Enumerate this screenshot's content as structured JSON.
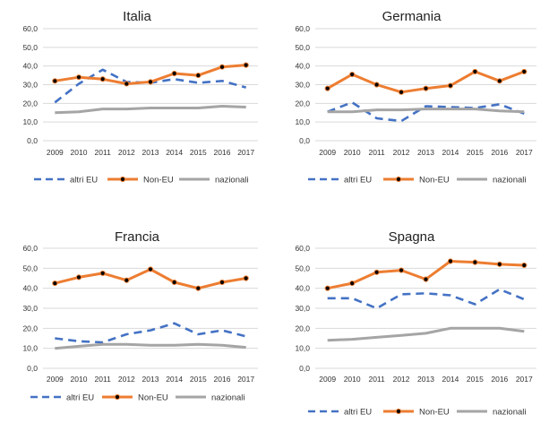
{
  "chart_data": [
    {
      "type": "line",
      "title": "Italia",
      "x": [
        "2009",
        "2010",
        "2011",
        "2012",
        "2013",
        "2014",
        "2015",
        "2016",
        "2017"
      ],
      "y_ticks": [
        "0,0",
        "10,0",
        "20,0",
        "30,0",
        "40,0",
        "50,0",
        "60,0"
      ],
      "ylim": [
        0,
        60
      ],
      "grid": true,
      "legend_position": "bottom",
      "series": [
        {
          "name": "altri EU",
          "values": [
            20.5,
            30.5,
            38.0,
            31.5,
            31.0,
            33.0,
            31.0,
            32.0,
            28.5
          ],
          "color": "#4472c4",
          "style": "dashed"
        },
        {
          "name": "Non-EU",
          "values": [
            32.0,
            34.0,
            33.0,
            30.5,
            31.5,
            36.0,
            35.0,
            39.5,
            40.5
          ],
          "color": "#ed7d31",
          "style": "solid-markers"
        },
        {
          "name": "nazionali",
          "values": [
            15.0,
            15.5,
            17.0,
            17.0,
            17.5,
            17.5,
            17.5,
            18.5,
            18.0
          ],
          "color": "#a5a5a5",
          "style": "solid"
        }
      ]
    },
    {
      "type": "line",
      "title": "Germania",
      "x": [
        "2009",
        "2010",
        "2011",
        "2012",
        "2013",
        "2014",
        "2015",
        "2016",
        "2017"
      ],
      "y_ticks": [
        "0,0",
        "10,0",
        "20,0",
        "30,0",
        "40,0",
        "50,0",
        "60,0"
      ],
      "ylim": [
        0,
        60
      ],
      "grid": true,
      "legend_position": "bottom",
      "series": [
        {
          "name": "altri EU",
          "values": [
            15.5,
            20.5,
            12.0,
            10.5,
            18.5,
            18.0,
            17.5,
            19.5,
            14.5
          ],
          "color": "#4472c4",
          "style": "dashed"
        },
        {
          "name": "Non-EU",
          "values": [
            28.0,
            35.5,
            30.0,
            26.0,
            28.0,
            29.5,
            37.0,
            32.0,
            37.0
          ],
          "color": "#ed7d31",
          "style": "solid-markers"
        },
        {
          "name": "nazionali",
          "values": [
            15.5,
            15.5,
            16.5,
            16.5,
            17.0,
            17.0,
            17.0,
            16.0,
            15.5
          ],
          "color": "#a5a5a5",
          "style": "solid"
        }
      ]
    },
    {
      "type": "line",
      "title": "Francia",
      "x": [
        "2009",
        "2010",
        "2011",
        "2012",
        "2013",
        "2014",
        "2015",
        "2016",
        "2017"
      ],
      "y_ticks": [
        "0,0",
        "10,0",
        "20,0",
        "30,0",
        "40,0",
        "50,0",
        "60,0"
      ],
      "ylim": [
        0,
        60
      ],
      "grid": true,
      "legend_position": "bottom",
      "series": [
        {
          "name": "altri EU",
          "values": [
            15.0,
            13.5,
            13.0,
            17.0,
            19.0,
            22.5,
            17.0,
            19.0,
            16.0
          ],
          "color": "#4472c4",
          "style": "dashed"
        },
        {
          "name": "Non-EU",
          "values": [
            42.5,
            45.5,
            47.5,
            44.0,
            49.5,
            43.0,
            40.0,
            43.0,
            45.0
          ],
          "color": "#ed7d31",
          "style": "solid-markers"
        },
        {
          "name": "nazionali",
          "values": [
            10.0,
            11.0,
            12.0,
            12.0,
            11.5,
            11.5,
            12.0,
            11.5,
            10.5
          ],
          "color": "#a5a5a5",
          "style": "solid"
        }
      ]
    },
    {
      "type": "line",
      "title": "Spagna",
      "x": [
        "2009",
        "2010",
        "2011",
        "2012",
        "2013",
        "2014",
        "2015",
        "2016",
        "2017"
      ],
      "y_ticks": [
        "0,0",
        "10,0",
        "20,0",
        "30,0",
        "40,0",
        "50,0",
        "60,0"
      ],
      "ylim": [
        0,
        60
      ],
      "grid": true,
      "legend_position": "bottom",
      "series": [
        {
          "name": "altri EU",
          "values": [
            35.0,
            35.0,
            30.0,
            37.0,
            37.5,
            36.5,
            32.0,
            39.5,
            34.5
          ],
          "color": "#4472c4",
          "style": "dashed"
        },
        {
          "name": "Non-EU",
          "values": [
            40.0,
            42.5,
            48.0,
            49.0,
            44.5,
            53.5,
            53.0,
            52.0,
            51.5
          ],
          "color": "#ed7d31",
          "style": "solid-markers"
        },
        {
          "name": "nazionali",
          "values": [
            14.0,
            14.5,
            15.5,
            16.5,
            17.5,
            20.0,
            20.0,
            20.0,
            18.5
          ],
          "color": "#a5a5a5",
          "style": "solid"
        }
      ]
    }
  ]
}
